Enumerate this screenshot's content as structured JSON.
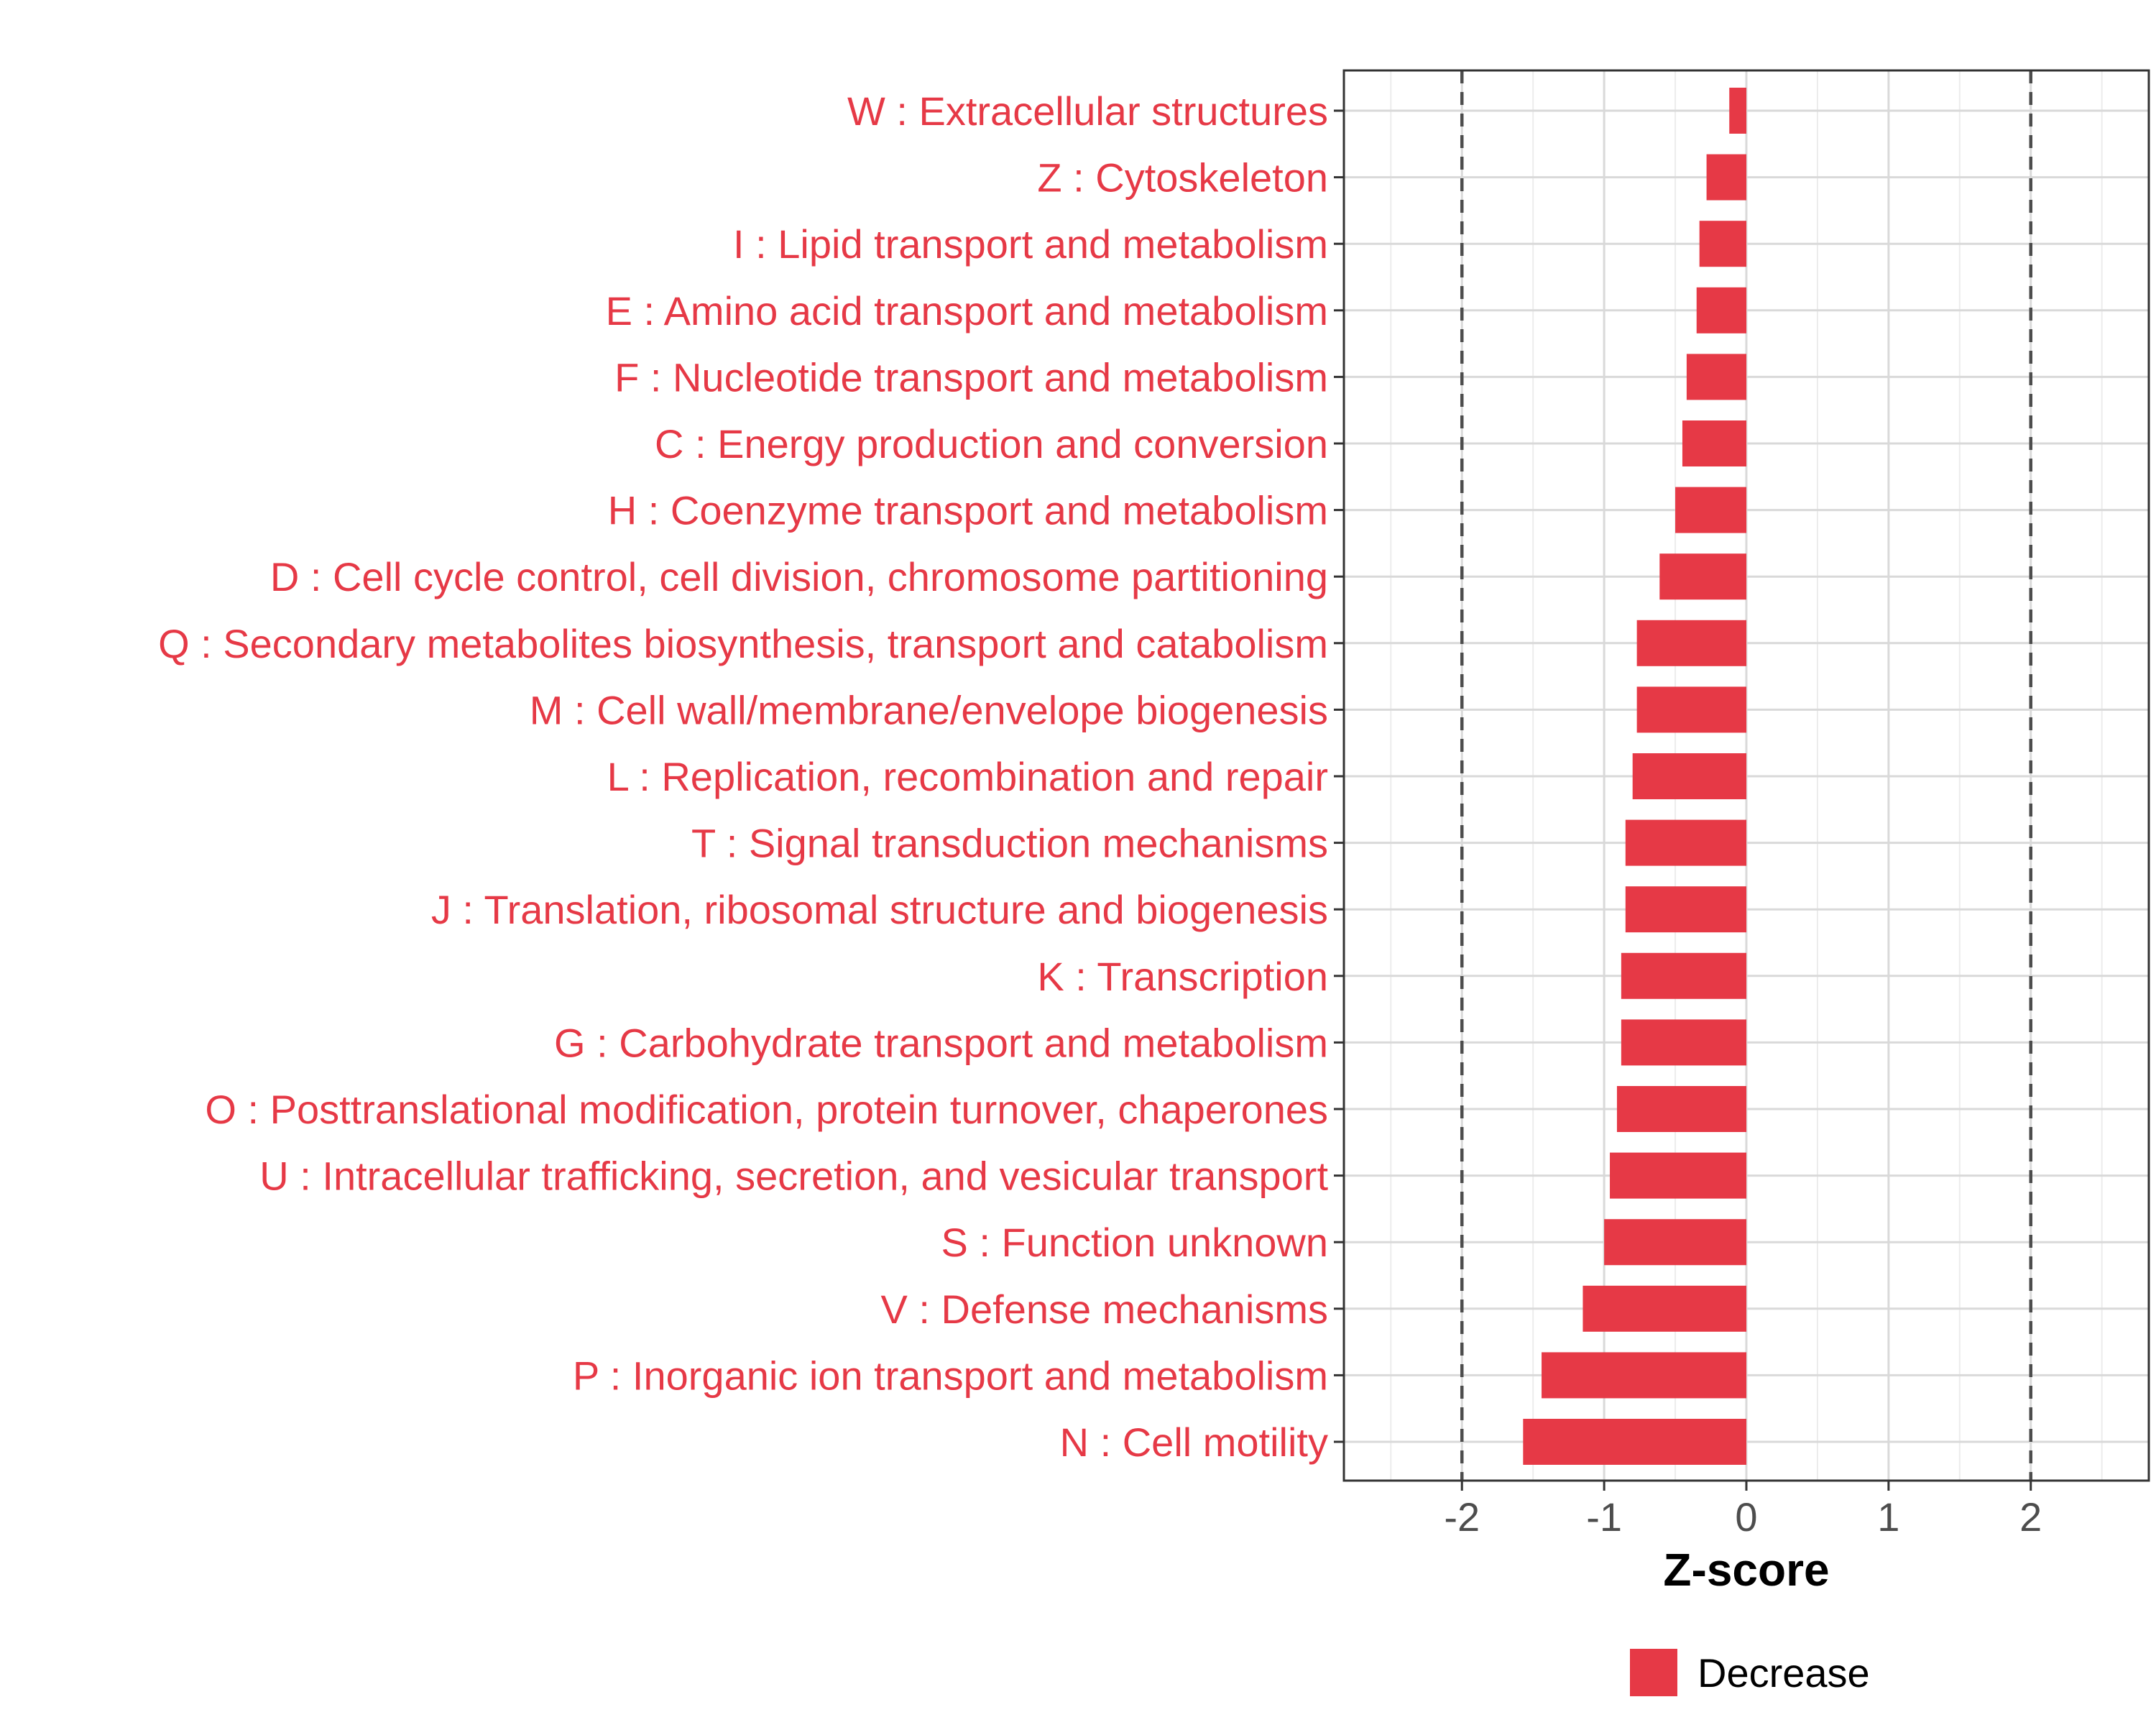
{
  "chart_data": {
    "type": "bar",
    "orientation": "horizontal",
    "categories": [
      "W : Extracellular structures",
      "Z : Cytoskeleton",
      "I : Lipid transport and metabolism",
      "E : Amino acid transport and metabolism",
      "F : Nucleotide transport and metabolism",
      "C : Energy production and conversion",
      "H : Coenzyme transport and metabolism",
      "D : Cell cycle control, cell division, chromosome partitioning",
      "Q : Secondary metabolites biosynthesis, transport and catabolism",
      "M : Cell wall/membrane/envelope biogenesis",
      "L : Replication, recombination and repair",
      "T : Signal transduction mechanisms",
      "J : Translation, ribosomal structure and biogenesis",
      "K : Transcription",
      "G : Carbohydrate transport and metabolism",
      "O : Posttranslational modification, protein turnover, chaperones",
      "U : Intracellular trafficking, secretion, and vesicular transport",
      "S : Function unknown",
      "V : Defense mechanisms",
      "P : Inorganic ion transport and metabolism",
      "N : Cell motility"
    ],
    "series": [
      {
        "name": "Decrease",
        "color": "#E63946",
        "values": [
          -0.12,
          -0.28,
          -0.33,
          -0.35,
          -0.42,
          -0.45,
          -0.5,
          -0.61,
          -0.77,
          -0.77,
          -0.8,
          -0.85,
          -0.85,
          -0.88,
          -0.88,
          -0.91,
          -0.96,
          -1.0,
          -1.15,
          -1.44,
          -1.57
        ]
      }
    ],
    "xlabel": "Z-score",
    "xlim": [
      -2.83,
      2.83
    ],
    "xticks": [
      "-2",
      "-1",
      "0",
      "1",
      "2"
    ],
    "xtick_values": [
      -2,
      -1,
      0,
      1,
      2
    ],
    "reference_lines": [
      -2,
      2
    ],
    "grid": true,
    "legend_position": "bottom"
  }
}
